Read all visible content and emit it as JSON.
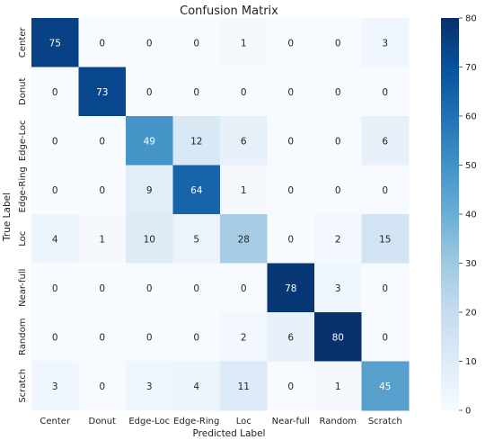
{
  "chart_data": {
    "type": "heatmap",
    "title": "Confusion Matrix",
    "xlabel": "Predicted Label",
    "ylabel": "True Label",
    "x_categories": [
      "Center",
      "Donut",
      "Edge-Loc",
      "Edge-Ring",
      "Loc",
      "Near-full",
      "Random",
      "Scratch"
    ],
    "y_categories": [
      "Center",
      "Donut",
      "Edge-Loc",
      "Edge-Ring",
      "Loc",
      "Near-full",
      "Random",
      "Scratch"
    ],
    "values": [
      [
        75,
        0,
        0,
        0,
        1,
        0,
        0,
        3
      ],
      [
        0,
        73,
        0,
        0,
        0,
        0,
        0,
        0
      ],
      [
        0,
        0,
        49,
        12,
        6,
        0,
        0,
        6
      ],
      [
        0,
        0,
        9,
        64,
        1,
        0,
        0,
        0
      ],
      [
        4,
        1,
        10,
        5,
        28,
        0,
        2,
        15
      ],
      [
        0,
        0,
        0,
        0,
        0,
        78,
        3,
        0
      ],
      [
        0,
        0,
        0,
        0,
        2,
        6,
        80,
        0
      ],
      [
        3,
        0,
        3,
        4,
        11,
        0,
        1,
        45
      ]
    ],
    "colorbar": {
      "range": [
        0,
        80
      ],
      "ticks": [
        0,
        10,
        20,
        30,
        40,
        50,
        60,
        70,
        80
      ],
      "colormap": "Blues",
      "low_color": "#f7fbff",
      "high_color": "#08306b"
    },
    "grid": false
  }
}
